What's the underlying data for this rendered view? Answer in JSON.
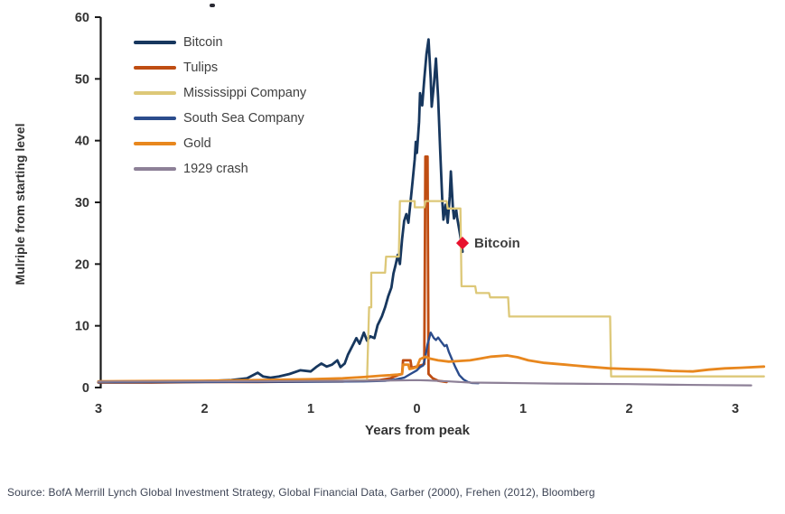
{
  "chart_data": {
    "type": "line",
    "title": "",
    "xlabel": "Years from peak",
    "ylabel": "Mulriple from starting level",
    "xlim": [
      -3.05,
      3.3
    ],
    "ylim": [
      0,
      60
    ],
    "grid": false,
    "legend_position": "top-left",
    "x_ticks": {
      "values": [
        -3,
        -2,
        -1,
        0,
        1,
        2,
        3
      ],
      "labels": [
        "3",
        "2",
        "1",
        "0",
        "1",
        "2",
        "3"
      ]
    },
    "y_ticks": {
      "values": [
        0,
        10,
        20,
        30,
        40,
        50,
        60
      ],
      "labels": [
        "0",
        "10",
        "20",
        "30",
        "40",
        "50",
        "60"
      ]
    },
    "annotation": {
      "label": "Bitcoin",
      "x": 0.43,
      "y": 23.4,
      "marker": "diamond-icon",
      "color": "#e8112d"
    },
    "series": [
      {
        "name": "Bitcoin",
        "color": "#17375e",
        "width": 2.8,
        "points": [
          [
            -3,
            0.9
          ],
          [
            -2.7,
            0.9
          ],
          [
            -2.4,
            1.0
          ],
          [
            -2.1,
            1.0
          ],
          [
            -1.9,
            1.1
          ],
          [
            -1.75,
            1.2
          ],
          [
            -1.6,
            1.5
          ],
          [
            -1.5,
            2.4
          ],
          [
            -1.45,
            1.8
          ],
          [
            -1.38,
            1.6
          ],
          [
            -1.3,
            1.8
          ],
          [
            -1.2,
            2.2
          ],
          [
            -1.1,
            2.8
          ],
          [
            -1.0,
            2.6
          ],
          [
            -0.95,
            3.3
          ],
          [
            -0.9,
            3.9
          ],
          [
            -0.85,
            3.4
          ],
          [
            -0.8,
            3.7
          ],
          [
            -0.75,
            4.4
          ],
          [
            -0.72,
            3.3
          ],
          [
            -0.68,
            3.9
          ],
          [
            -0.65,
            5.3
          ],
          [
            -0.6,
            7.0
          ],
          [
            -0.57,
            8.0
          ],
          [
            -0.54,
            7.1
          ],
          [
            -0.5,
            8.9
          ],
          [
            -0.47,
            7.6
          ],
          [
            -0.44,
            8.3
          ],
          [
            -0.4,
            8.0
          ],
          [
            -0.37,
            10.1
          ],
          [
            -0.33,
            11.5
          ],
          [
            -0.3,
            13.0
          ],
          [
            -0.27,
            14.8
          ],
          [
            -0.24,
            16.2
          ],
          [
            -0.22,
            18.5
          ],
          [
            -0.2,
            19.9
          ],
          [
            -0.18,
            21.5
          ],
          [
            -0.16,
            20.0
          ],
          [
            -0.14,
            24.0
          ],
          [
            -0.12,
            27.0
          ],
          [
            -0.1,
            28.1
          ],
          [
            -0.08,
            26.7
          ],
          [
            -0.06,
            30.0
          ],
          [
            -0.04,
            33.5
          ],
          [
            -0.02,
            37.0
          ],
          [
            -0.01,
            39.8
          ],
          [
            0.0,
            38.0
          ],
          [
            0.02,
            43.0
          ],
          [
            0.03,
            47.7
          ],
          [
            0.05,
            45.7
          ],
          [
            0.07,
            50.0
          ],
          [
            0.09,
            54.0
          ],
          [
            0.11,
            56.4
          ],
          [
            0.13,
            50.0
          ],
          [
            0.14,
            45.5
          ],
          [
            0.16,
            49.0
          ],
          [
            0.18,
            53.3
          ],
          [
            0.2,
            47.0
          ],
          [
            0.22,
            38.0
          ],
          [
            0.24,
            30.0
          ],
          [
            0.25,
            27.2
          ],
          [
            0.27,
            29.6
          ],
          [
            0.29,
            26.7
          ],
          [
            0.31,
            31.0
          ],
          [
            0.32,
            35.0
          ],
          [
            0.34,
            29.0
          ],
          [
            0.35,
            27.4
          ],
          [
            0.37,
            28.8
          ],
          [
            0.38,
            27.5
          ],
          [
            0.4,
            25.5
          ],
          [
            0.42,
            23.4
          ],
          [
            0.43,
            22.0
          ]
        ]
      },
      {
        "name": "Tulips",
        "color": "#bf4d12",
        "width": 2.8,
        "points": [
          [
            -3,
            0.8
          ],
          [
            -2.5,
            0.8
          ],
          [
            -2,
            0.9
          ],
          [
            -1.5,
            0.9
          ],
          [
            -1,
            1.0
          ],
          [
            -0.7,
            1.0
          ],
          [
            -0.5,
            1.1
          ],
          [
            -0.35,
            1.2
          ],
          [
            -0.25,
            1.5
          ],
          [
            -0.18,
            2.0
          ],
          [
            -0.14,
            2.2
          ],
          [
            -0.13,
            4.4
          ],
          [
            -0.06,
            4.4
          ],
          [
            -0.05,
            3.2
          ],
          [
            0.0,
            3.4
          ],
          [
            0.04,
            3.6
          ],
          [
            0.07,
            3.8
          ],
          [
            0.08,
            37.4
          ],
          [
            0.1,
            37.4
          ],
          [
            0.11,
            2.2
          ],
          [
            0.15,
            1.5
          ],
          [
            0.2,
            1.1
          ],
          [
            0.28,
            0.9
          ]
        ]
      },
      {
        "name": "Mississippi Company",
        "color": "#ddc878",
        "width": 2.3,
        "points": [
          [
            -3,
            1.0
          ],
          [
            -0.8,
            1.0
          ],
          [
            -0.47,
            1.2
          ],
          [
            -0.45,
            13.0
          ],
          [
            -0.43,
            13.0
          ],
          [
            -0.43,
            18.6
          ],
          [
            -0.3,
            18.6
          ],
          [
            -0.29,
            21.2
          ],
          [
            -0.17,
            21.2
          ],
          [
            -0.16,
            30.2
          ],
          [
            -0.02,
            30.2
          ],
          [
            -0.02,
            29.2
          ],
          [
            0.07,
            29.2
          ],
          [
            0.08,
            30.2
          ],
          [
            0.28,
            30.2
          ],
          [
            0.29,
            29.0
          ],
          [
            0.41,
            29.0
          ],
          [
            0.42,
            16.4
          ],
          [
            0.55,
            16.4
          ],
          [
            0.56,
            15.3
          ],
          [
            0.68,
            15.3
          ],
          [
            0.69,
            14.6
          ],
          [
            0.86,
            14.6
          ],
          [
            0.87,
            11.5
          ],
          [
            1.82,
            11.5
          ],
          [
            1.83,
            1.8
          ],
          [
            3.27,
            1.8
          ]
        ]
      },
      {
        "name": "South Sea Company",
        "color": "#2b4c8c",
        "width": 2.4,
        "points": [
          [
            -3,
            0.85
          ],
          [
            -2,
            0.9
          ],
          [
            -1,
            0.95
          ],
          [
            -0.5,
            1.0
          ],
          [
            -0.3,
            1.1
          ],
          [
            -0.2,
            1.3
          ],
          [
            -0.12,
            1.6
          ],
          [
            -0.06,
            2.2
          ],
          [
            0.0,
            2.8
          ],
          [
            0.03,
            3.3
          ],
          [
            0.06,
            3.6
          ],
          [
            0.08,
            5.0
          ],
          [
            0.1,
            7.0
          ],
          [
            0.13,
            8.9
          ],
          [
            0.16,
            8.0
          ],
          [
            0.18,
            7.7
          ],
          [
            0.2,
            8.1
          ],
          [
            0.23,
            7.4
          ],
          [
            0.26,
            6.7
          ],
          [
            0.28,
            6.9
          ],
          [
            0.3,
            5.8
          ],
          [
            0.33,
            4.6
          ],
          [
            0.36,
            3.4
          ],
          [
            0.4,
            2.0
          ],
          [
            0.44,
            1.3
          ],
          [
            0.48,
            0.9
          ],
          [
            0.52,
            0.75
          ],
          [
            0.58,
            0.7
          ]
        ]
      },
      {
        "name": "Gold",
        "color": "#e8871e",
        "width": 2.8,
        "points": [
          [
            -3,
            1.0
          ],
          [
            -2.5,
            1.05
          ],
          [
            -2,
            1.1
          ],
          [
            -1.5,
            1.2
          ],
          [
            -1,
            1.35
          ],
          [
            -0.7,
            1.5
          ],
          [
            -0.5,
            1.7
          ],
          [
            -0.35,
            1.9
          ],
          [
            -0.25,
            2.0
          ],
          [
            -0.18,
            2.1
          ],
          [
            -0.14,
            2.2
          ],
          [
            -0.13,
            3.7
          ],
          [
            -0.08,
            3.7
          ],
          [
            -0.07,
            3.0
          ],
          [
            -0.04,
            3.1
          ],
          [
            0.0,
            3.3
          ],
          [
            0.03,
            4.6
          ],
          [
            0.08,
            5.0
          ],
          [
            0.12,
            4.7
          ],
          [
            0.2,
            4.4
          ],
          [
            0.3,
            4.2
          ],
          [
            0.4,
            4.3
          ],
          [
            0.5,
            4.4
          ],
          [
            0.6,
            4.7
          ],
          [
            0.7,
            5.0
          ],
          [
            0.85,
            5.2
          ],
          [
            0.95,
            4.9
          ],
          [
            1.05,
            4.4
          ],
          [
            1.2,
            4.0
          ],
          [
            1.4,
            3.7
          ],
          [
            1.6,
            3.4
          ],
          [
            1.82,
            3.1
          ],
          [
            2.0,
            3.0
          ],
          [
            2.2,
            2.9
          ],
          [
            2.4,
            2.7
          ],
          [
            2.6,
            2.6
          ],
          [
            2.75,
            2.9
          ],
          [
            2.9,
            3.1
          ],
          [
            3.05,
            3.2
          ],
          [
            3.27,
            3.4
          ]
        ]
      },
      {
        "name": "1929 crash",
        "color": "#8d8097",
        "width": 2.2,
        "points": [
          [
            -3,
            0.95
          ],
          [
            -2,
            1.0
          ],
          [
            -1,
            1.05
          ],
          [
            -0.5,
            1.1
          ],
          [
            -0.2,
            1.15
          ],
          [
            0.0,
            1.2
          ],
          [
            0.1,
            1.15
          ],
          [
            0.3,
            1.0
          ],
          [
            0.5,
            0.8
          ],
          [
            0.8,
            0.75
          ],
          [
            1.0,
            0.7
          ],
          [
            1.3,
            0.65
          ],
          [
            1.6,
            0.6
          ],
          [
            2.0,
            0.55
          ],
          [
            2.4,
            0.45
          ],
          [
            2.8,
            0.4
          ],
          [
            3.15,
            0.35
          ]
        ]
      }
    ]
  },
  "source_note": "Source:  BofA Merrill Lynch Global Investment Strategy, Global Financial Data, Garber (2000), Frehen (2012),  Bloomberg"
}
